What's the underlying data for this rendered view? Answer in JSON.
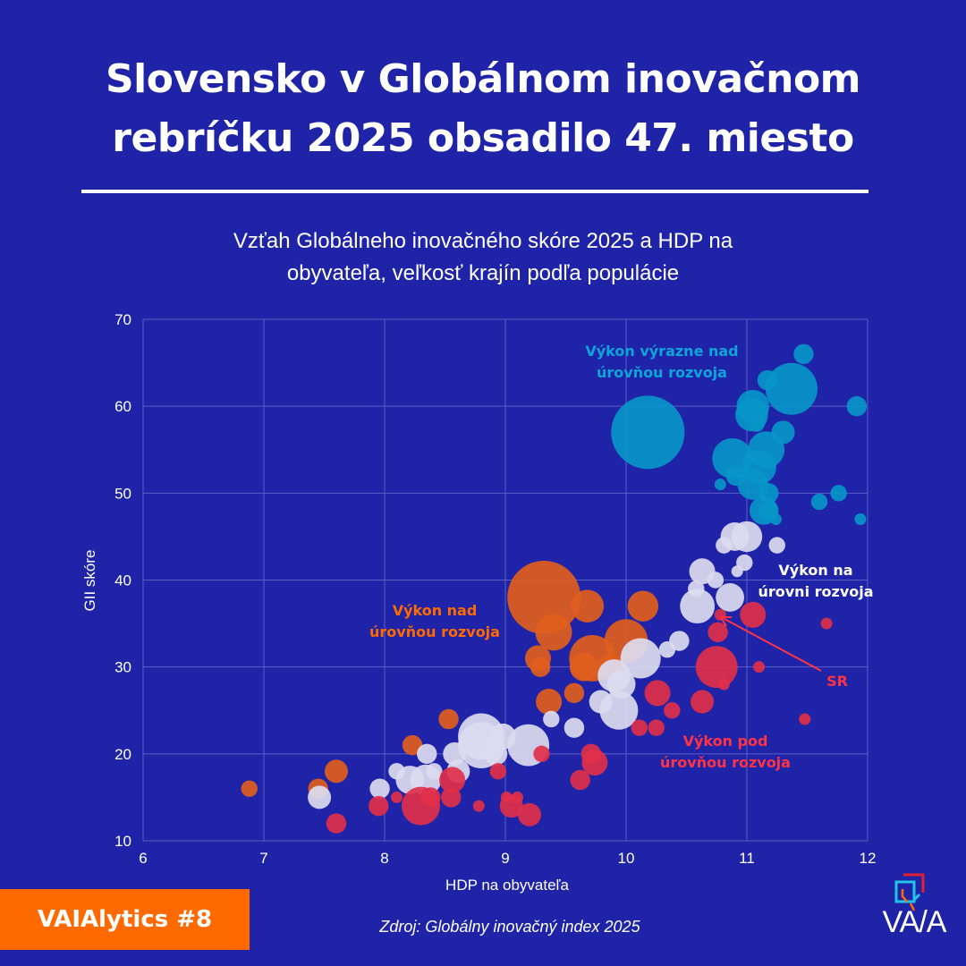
{
  "header": {
    "title_line1": "Slovensko v Globálnom inovačnom",
    "title_line2": "rebríčku 2025 obsadilo 47. miesto",
    "subtitle_line1": "Vzťah Globálneho inovačného skóre 2025 a HDP na",
    "subtitle_line2": "obyvateľa, veľkosť krajín podľa populácie"
  },
  "footer": {
    "badge": "VAIAlytics #8",
    "source": "Zdroj: Globálny inovačný index 2025",
    "logo_text": "VA/A",
    "logo_icon": "vaia-logo-icon"
  },
  "colors": {
    "background": "#1f23a8",
    "far_above": "#0896c8",
    "above": "#e05e1c",
    "at_level": "#dcdcf0",
    "below": "#e0304a",
    "grid": "#5a5fc4",
    "badge": "#ff6a00",
    "label_far_above": "#0ea5d8",
    "label_above": "#ff6a00",
    "label_below": "#ff3344"
  },
  "chart_data": {
    "type": "scatter",
    "subtype": "bubble",
    "xlabel": "HDP na obyvateľa",
    "ylabel": "GII skóre",
    "xlim": [
      6,
      12
    ],
    "ylim": [
      10,
      70
    ],
    "xticks": [
      "6",
      "7",
      "8",
      "9",
      "10",
      "11",
      "12"
    ],
    "yticks": [
      "10",
      "20",
      "30",
      "40",
      "50",
      "60",
      "70"
    ],
    "grid": true,
    "annotations": [
      {
        "key": "far_above",
        "line1": "Výkon výrazne nad",
        "line2": "úrovňou rozvoja"
      },
      {
        "key": "at_level",
        "line1": "Výkon na",
        "line2": "úrovni rozvoja"
      },
      {
        "key": "above",
        "line1": "Výkon nad",
        "line2": "úrovňou rozvoja"
      },
      {
        "key": "below",
        "line1": "Výkon pod",
        "line2": "úrovňou rozvoja"
      },
      {
        "key": "sr",
        "text": "SR",
        "x": 10.78,
        "y": 36
      }
    ],
    "series": [
      {
        "name": "Výkon výrazne nad úrovňou rozvoja",
        "color_key": "far_above",
        "points": [
          {
            "x": 10.18,
            "y": 57,
            "size": 40
          },
          {
            "x": 11.37,
            "y": 62,
            "size": 20
          },
          {
            "x": 11.47,
            "y": 66,
            "size": 3
          },
          {
            "x": 11.17,
            "y": 63,
            "size": 3
          },
          {
            "x": 11.05,
            "y": 60,
            "size": 8
          },
          {
            "x": 11.04,
            "y": 59,
            "size": 8
          },
          {
            "x": 11.08,
            "y": 58,
            "size": 2
          },
          {
            "x": 11.3,
            "y": 57,
            "size": 4
          },
          {
            "x": 10.88,
            "y": 54,
            "size": 12
          },
          {
            "x": 11.16,
            "y": 55,
            "size": 10
          },
          {
            "x": 11.1,
            "y": 53,
            "size": 9
          },
          {
            "x": 10.91,
            "y": 52,
            "size": 3
          },
          {
            "x": 11.05,
            "y": 51,
            "size": 7
          },
          {
            "x": 10.78,
            "y": 51,
            "size": 1
          },
          {
            "x": 11.18,
            "y": 50,
            "size": 3
          },
          {
            "x": 11.14,
            "y": 48,
            "size": 6
          },
          {
            "x": 11.18,
            "y": 48,
            "size": 3
          },
          {
            "x": 11.91,
            "y": 60,
            "size": 3
          },
          {
            "x": 11.76,
            "y": 50,
            "size": 2
          },
          {
            "x": 11.6,
            "y": 49,
            "size": 2
          },
          {
            "x": 11.94,
            "y": 47,
            "size": 1
          },
          {
            "x": 11.24,
            "y": 47,
            "size": 1
          }
        ]
      },
      {
        "name": "Výkon nad úrovňou rozvoja",
        "color_key": "above",
        "points": [
          {
            "x": 9.32,
            "y": 38,
            "size": 40
          },
          {
            "x": 9.4,
            "y": 34,
            "size": 10
          },
          {
            "x": 9.68,
            "y": 37,
            "size": 8
          },
          {
            "x": 9.72,
            "y": 31,
            "size": 16
          },
          {
            "x": 10.0,
            "y": 33,
            "size": 14
          },
          {
            "x": 10.14,
            "y": 37,
            "size": 7
          },
          {
            "x": 9.27,
            "y": 31,
            "size": 5
          },
          {
            "x": 9.29,
            "y": 30,
            "size": 3
          },
          {
            "x": 9.65,
            "y": 30,
            "size": 6
          },
          {
            "x": 9.87,
            "y": 30,
            "size": 5
          },
          {
            "x": 9.36,
            "y": 26,
            "size": 5
          },
          {
            "x": 9.57,
            "y": 27,
            "size": 3
          },
          {
            "x": 8.53,
            "y": 24,
            "size": 3
          },
          {
            "x": 8.23,
            "y": 21,
            "size": 3
          },
          {
            "x": 7.6,
            "y": 18,
            "size": 4
          },
          {
            "x": 7.45,
            "y": 16,
            "size": 3
          },
          {
            "x": 6.88,
            "y": 16,
            "size": 2
          }
        ]
      },
      {
        "name": "Výkon na úrovni rozvoja",
        "color_key": "at_level",
        "points": [
          {
            "x": 10.9,
            "y": 45,
            "size": 6
          },
          {
            "x": 11.0,
            "y": 45,
            "size": 7
          },
          {
            "x": 10.81,
            "y": 44,
            "size": 2
          },
          {
            "x": 11.25,
            "y": 44,
            "size": 2
          },
          {
            "x": 10.98,
            "y": 42,
            "size": 2
          },
          {
            "x": 10.63,
            "y": 41,
            "size": 5
          },
          {
            "x": 10.92,
            "y": 41,
            "size": 1
          },
          {
            "x": 10.74,
            "y": 40,
            "size": 2
          },
          {
            "x": 10.58,
            "y": 39,
            "size": 2
          },
          {
            "x": 10.86,
            "y": 38,
            "size": 6
          },
          {
            "x": 10.59,
            "y": 37,
            "size": 9
          },
          {
            "x": 10.44,
            "y": 33,
            "size": 3
          },
          {
            "x": 10.34,
            "y": 32,
            "size": 2
          },
          {
            "x": 10.12,
            "y": 31,
            "size": 12
          },
          {
            "x": 9.9,
            "y": 29,
            "size": 8
          },
          {
            "x": 9.96,
            "y": 28,
            "size": 6
          },
          {
            "x": 9.79,
            "y": 26,
            "size": 4
          },
          {
            "x": 9.94,
            "y": 25,
            "size": 11
          },
          {
            "x": 9.57,
            "y": 23,
            "size": 3
          },
          {
            "x": 9.38,
            "y": 24,
            "size": 2
          },
          {
            "x": 9.19,
            "y": 21,
            "size": 13
          },
          {
            "x": 8.8,
            "y": 22,
            "size": 16
          },
          {
            "x": 8.8,
            "y": 21,
            "size": 16
          },
          {
            "x": 8.98,
            "y": 22,
            "size": 5
          },
          {
            "x": 8.92,
            "y": 20,
            "size": 4
          },
          {
            "x": 8.61,
            "y": 18,
            "size": 4
          },
          {
            "x": 8.58,
            "y": 20,
            "size": 4
          },
          {
            "x": 8.35,
            "y": 20,
            "size": 3
          },
          {
            "x": 8.34,
            "y": 17,
            "size": 7
          },
          {
            "x": 8.21,
            "y": 17,
            "size": 6
          },
          {
            "x": 8.41,
            "y": 18,
            "size": 2
          },
          {
            "x": 8.1,
            "y": 18,
            "size": 2
          },
          {
            "x": 7.96,
            "y": 16,
            "size": 3
          },
          {
            "x": 7.46,
            "y": 15,
            "size": 4
          }
        ]
      },
      {
        "name": "Výkon pod úrovňou rozvoja",
        "color_key": "below",
        "points": [
          {
            "x": 10.78,
            "y": 36,
            "size": 1,
            "label": "SR"
          },
          {
            "x": 11.05,
            "y": 36,
            "size": 5
          },
          {
            "x": 10.76,
            "y": 34,
            "size": 3
          },
          {
            "x": 10.75,
            "y": 30,
            "size": 13
          },
          {
            "x": 10.26,
            "y": 27,
            "size": 5
          },
          {
            "x": 10.63,
            "y": 26,
            "size": 4
          },
          {
            "x": 10.81,
            "y": 28,
            "size": 1
          },
          {
            "x": 10.38,
            "y": 25,
            "size": 2
          },
          {
            "x": 10.11,
            "y": 23,
            "size": 2
          },
          {
            "x": 10.25,
            "y": 23,
            "size": 2
          },
          {
            "x": 9.74,
            "y": 19,
            "size": 5
          },
          {
            "x": 9.71,
            "y": 20,
            "size": 3
          },
          {
            "x": 9.62,
            "y": 17,
            "size": 3
          },
          {
            "x": 9.3,
            "y": 20,
            "size": 2
          },
          {
            "x": 8.94,
            "y": 18,
            "size": 2
          },
          {
            "x": 8.56,
            "y": 17,
            "size": 5
          },
          {
            "x": 8.3,
            "y": 14,
            "size": 11
          },
          {
            "x": 8.38,
            "y": 15,
            "size": 3
          },
          {
            "x": 8.55,
            "y": 15,
            "size": 3
          },
          {
            "x": 7.95,
            "y": 14,
            "size": 3
          },
          {
            "x": 8.1,
            "y": 15,
            "size": 1
          },
          {
            "x": 8.78,
            "y": 14,
            "size": 1
          },
          {
            "x": 9.05,
            "y": 14,
            "size": 4
          },
          {
            "x": 9.2,
            "y": 13,
            "size": 4
          },
          {
            "x": 9.01,
            "y": 15,
            "size": 1
          },
          {
            "x": 9.1,
            "y": 15,
            "size": 1
          },
          {
            "x": 7.6,
            "y": 12,
            "size": 3
          },
          {
            "x": 11.66,
            "y": 35,
            "size": 1
          },
          {
            "x": 11.1,
            "y": 30,
            "size": 1
          },
          {
            "x": 11.48,
            "y": 24,
            "size": 1
          }
        ]
      }
    ]
  }
}
